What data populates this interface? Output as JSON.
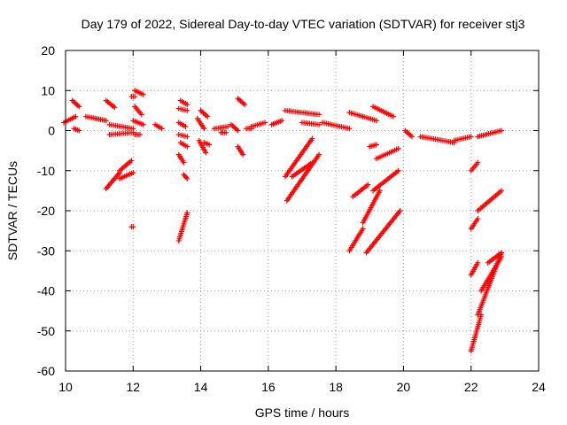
{
  "chart_data": {
    "type": "scatter",
    "title": "Day 179 of 2022, Sidereal Day-to-day VTEC variation (SDTVAR) for receiver stj3",
    "xlabel": "GPS time / hours",
    "ylabel": "SDTVAR / TECUs",
    "xlim": [
      10,
      24
    ],
    "ylim": [
      -60,
      20
    ],
    "xticks": [
      "10",
      "12",
      "14",
      "16",
      "18",
      "20",
      "22",
      "24"
    ],
    "yticks": [
      "20",
      "10",
      "0",
      "-10",
      "-20",
      "-30",
      "-40",
      "-50",
      "-60"
    ],
    "grid": true,
    "marker": "plus",
    "color": "#ff0000",
    "segments": [
      {
        "x": [
          9.95,
          10.3
        ],
        "y": [
          2.0,
          3.5
        ]
      },
      {
        "x": [
          10.2,
          10.4
        ],
        "y": [
          7.5,
          6.0
        ]
      },
      {
        "x": [
          10.25,
          10.4
        ],
        "y": [
          0.5,
          0.0
        ]
      },
      {
        "x": [
          10.6,
          11.2
        ],
        "y": [
          3.5,
          2.5
        ]
      },
      {
        "x": [
          11.2,
          11.45
        ],
        "y": [
          7.5,
          5.8
        ]
      },
      {
        "x": [
          11.3,
          12.0
        ],
        "y": [
          1.5,
          0.5
        ]
      },
      {
        "x": [
          11.3,
          12.0
        ],
        "y": [
          -1.0,
          -0.5
        ]
      },
      {
        "x": [
          11.2,
          11.6
        ],
        "y": [
          -14.5,
          -10.5
        ]
      },
      {
        "x": [
          11.6,
          11.95
        ],
        "y": [
          -10.0,
          -7.5
        ]
      },
      {
        "x": [
          11.6,
          12.0
        ],
        "y": [
          -12.0,
          -10.5
        ]
      },
      {
        "x": [
          11.95,
          12.0
        ],
        "y": [
          -24.0,
          -24.0
        ]
      },
      {
        "x": [
          11.95,
          12.05
        ],
        "y": [
          8.5,
          8.5
        ]
      },
      {
        "x": [
          12.05,
          12.3
        ],
        "y": [
          10.0,
          9.0
        ]
      },
      {
        "x": [
          12.05,
          12.25
        ],
        "y": [
          6.0,
          4.0
        ]
      },
      {
        "x": [
          12.0,
          12.3
        ],
        "y": [
          2.5,
          1.5
        ]
      },
      {
        "x": [
          12.05,
          12.2
        ],
        "y": [
          -1.0,
          -1.0
        ]
      },
      {
        "x": [
          12.65,
          12.85
        ],
        "y": [
          1.5,
          0.5
        ]
      },
      {
        "x": [
          13.4,
          13.6
        ],
        "y": [
          7.5,
          6.5
        ]
      },
      {
        "x": [
          13.35,
          13.6
        ],
        "y": [
          5.5,
          5.0
        ]
      },
      {
        "x": [
          13.35,
          13.55
        ],
        "y": [
          2.0,
          1.0
        ]
      },
      {
        "x": [
          13.35,
          13.6
        ],
        "y": [
          -1.0,
          -1.5
        ]
      },
      {
        "x": [
          13.4,
          13.6
        ],
        "y": [
          -3.0,
          -4.0
        ]
      },
      {
        "x": [
          13.35,
          13.5
        ],
        "y": [
          -6.0,
          -8.0
        ]
      },
      {
        "x": [
          13.5,
          13.6
        ],
        "y": [
          -11.0,
          -12.0
        ]
      },
      {
        "x": [
          13.35,
          13.6
        ],
        "y": [
          -27.5,
          -20.5
        ]
      },
      {
        "x": [
          13.9,
          14.1
        ],
        "y": [
          3.0,
          0.5
        ]
      },
      {
        "x": [
          14.0,
          14.2
        ],
        "y": [
          5.0,
          3.5
        ]
      },
      {
        "x": [
          13.95,
          14.15
        ],
        "y": [
          -2.5,
          -5.5
        ]
      },
      {
        "x": [
          14.1,
          14.25
        ],
        "y": [
          -3.0,
          -3.5
        ]
      },
      {
        "x": [
          14.4,
          14.8
        ],
        "y": [
          0.5,
          1.0
        ]
      },
      {
        "x": [
          14.6,
          14.75
        ],
        "y": [
          -0.5,
          -0.5
        ]
      },
      {
        "x": [
          14.9,
          15.1
        ],
        "y": [
          1.5,
          0.0
        ]
      },
      {
        "x": [
          15.1,
          15.3
        ],
        "y": [
          8.0,
          6.5
        ]
      },
      {
        "x": [
          15.1,
          15.25
        ],
        "y": [
          -4.0,
          -6.0
        ]
      },
      {
        "x": [
          15.35,
          15.5
        ],
        "y": [
          0.5,
          0.5
        ]
      },
      {
        "x": [
          15.5,
          15.9
        ],
        "y": [
          1.0,
          2.0
        ]
      },
      {
        "x": [
          16.1,
          16.4
        ],
        "y": [
          1.5,
          2.5
        ]
      },
      {
        "x": [
          16.5,
          17.5
        ],
        "y": [
          5.0,
          4.0
        ]
      },
      {
        "x": [
          16.5,
          17.3
        ],
        "y": [
          -11.5,
          -2.0
        ]
      },
      {
        "x": [
          16.55,
          17.5
        ],
        "y": [
          -17.5,
          -6.0
        ]
      },
      {
        "x": [
          16.7,
          17.3
        ],
        "y": [
          -11.5,
          -8.0
        ]
      },
      {
        "x": [
          17.0,
          17.5
        ],
        "y": [
          2.0,
          1.5
        ]
      },
      {
        "x": [
          17.6,
          18.4
        ],
        "y": [
          2.0,
          0.5
        ]
      },
      {
        "x": [
          18.4,
          18.8
        ],
        "y": [
          4.5,
          3.5
        ]
      },
      {
        "x": [
          18.8,
          19.2
        ],
        "y": [
          3.5,
          2.5
        ]
      },
      {
        "x": [
          19.1,
          19.7
        ],
        "y": [
          6.0,
          3.5
        ]
      },
      {
        "x": [
          18.5,
          18.95
        ],
        "y": [
          -16.5,
          -13.5
        ]
      },
      {
        "x": [
          18.4,
          18.8
        ],
        "y": [
          -30.0,
          -24.5
        ]
      },
      {
        "x": [
          18.8,
          19.3
        ],
        "y": [
          -23.0,
          -15.0
        ]
      },
      {
        "x": [
          19.0,
          19.2
        ],
        "y": [
          -4.0,
          -3.5
        ]
      },
      {
        "x": [
          18.9,
          19.9
        ],
        "y": [
          -30.5,
          -20.0
        ]
      },
      {
        "x": [
          19.1,
          19.85
        ],
        "y": [
          -15.0,
          -10.0
        ]
      },
      {
        "x": [
          19.2,
          19.85
        ],
        "y": [
          -7.0,
          -4.5
        ]
      },
      {
        "x": [
          20.05,
          20.25
        ],
        "y": [
          0.0,
          -1.5
        ]
      },
      {
        "x": [
          20.5,
          21.5
        ],
        "y": [
          -1.5,
          -3.0
        ]
      },
      {
        "x": [
          21.5,
          22.0
        ],
        "y": [
          -2.5,
          -1.5
        ]
      },
      {
        "x": [
          22.0,
          22.2
        ],
        "y": [
          -10.0,
          -8.0
        ]
      },
      {
        "x": [
          22.0,
          22.2
        ],
        "y": [
          -24.5,
          -22.0
        ]
      },
      {
        "x": [
          22.2,
          22.9
        ],
        "y": [
          -1.5,
          0.0
        ]
      },
      {
        "x": [
          22.2,
          22.9
        ],
        "y": [
          -20.0,
          -15.0
        ]
      },
      {
        "x": [
          22.0,
          22.2
        ],
        "y": [
          -36.0,
          -33.0
        ]
      },
      {
        "x": [
          22.0,
          22.3
        ],
        "y": [
          -55.0,
          -46.0
        ]
      },
      {
        "x": [
          22.2,
          22.9
        ],
        "y": [
          -46.0,
          -30.5
        ]
      },
      {
        "x": [
          22.3,
          22.9
        ],
        "y": [
          -40.0,
          -31.5
        ]
      },
      {
        "x": [
          22.5,
          22.9
        ],
        "y": [
          -33.0,
          -30.5
        ]
      }
    ]
  }
}
